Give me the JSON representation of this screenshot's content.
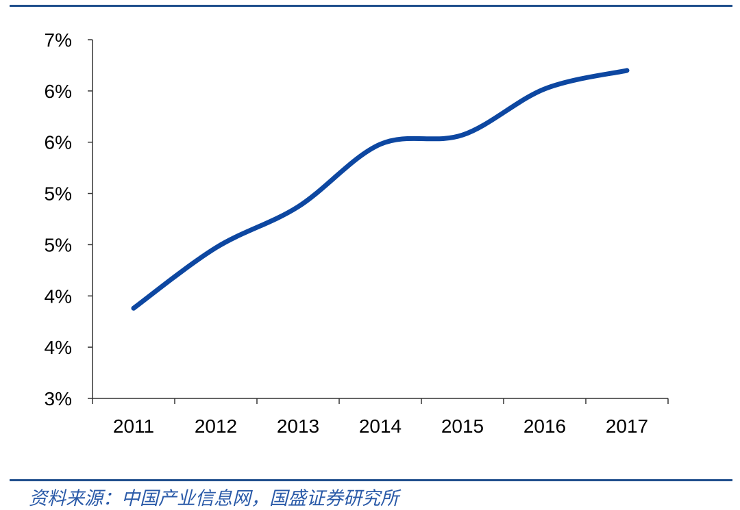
{
  "chart_data": {
    "type": "line",
    "title": "",
    "xlabel": "",
    "ylabel": "",
    "categories": [
      "2011",
      "2012",
      "2013",
      "2014",
      "2015",
      "2016",
      "2017"
    ],
    "series": [
      {
        "values": [
          3.88,
          4.47,
          4.87,
          5.48,
          5.57,
          6.02,
          6.2
        ]
      }
    ],
    "ylim": [
      3.0,
      6.5
    ],
    "y_ticks": [
      3.0,
      3.5,
      4.0,
      4.5,
      5.0,
      5.5,
      6.0,
      6.5
    ],
    "y_tick_labels": [
      "3%",
      "4%",
      "4%",
      "5%",
      "5%",
      "6%",
      "6%",
      "7%"
    ],
    "grid": false,
    "line_color": "#0d47a1"
  },
  "source_text": "资料来源：中国产业信息网，国盛证券研究所",
  "rule_color": "#1f4e8c"
}
